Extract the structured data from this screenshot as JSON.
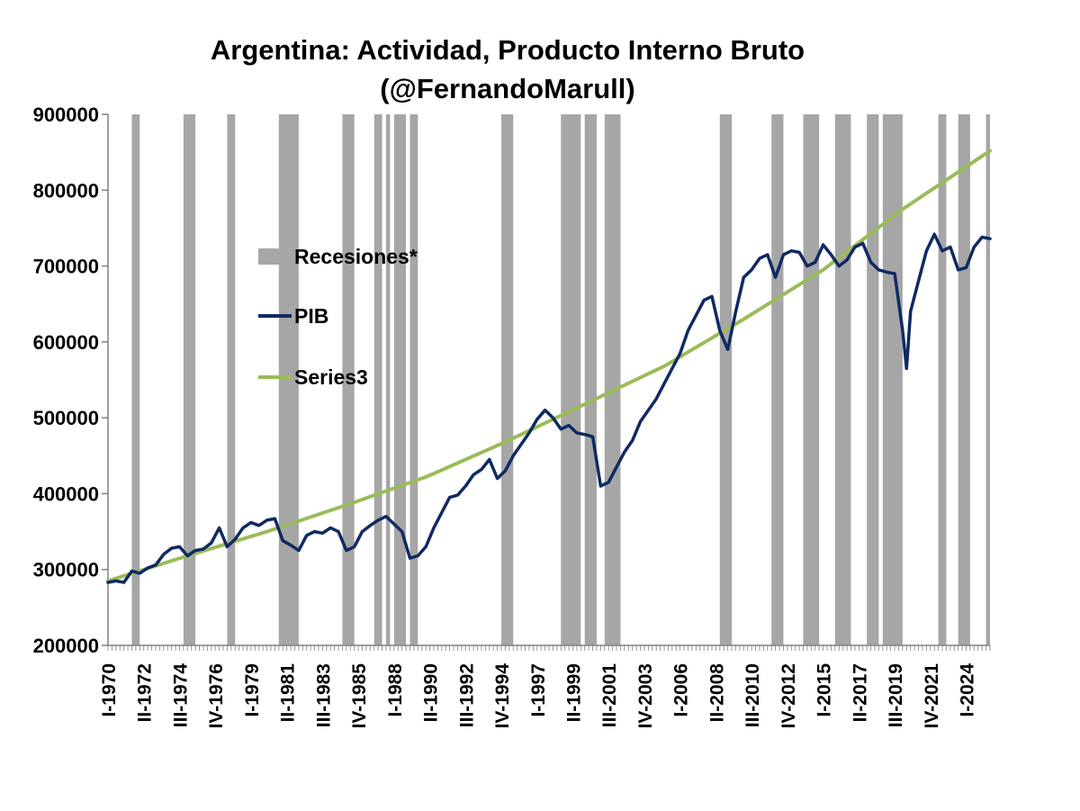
{
  "chart_data": {
    "type": "line",
    "title": "Argentina: Actividad, Producto Interno Bruto",
    "subtitle": "(@FernandoMarull)",
    "xlabel": "",
    "ylabel": "",
    "ylim": [
      200000,
      900000
    ],
    "yticks": [
      "200000",
      "300000",
      "400000",
      "500000",
      "600000",
      "700000",
      "800000",
      "900000"
    ],
    "xlim": [
      1970.0,
      2025.5
    ],
    "xticks": [
      {
        "label": "I-1970",
        "x": 1970.0
      },
      {
        "label": "II-1972",
        "x": 1972.25
      },
      {
        "label": "III-1974",
        "x": 1974.5
      },
      {
        "label": "IV-1976",
        "x": 1976.75
      },
      {
        "label": "I-1979",
        "x": 1979.0
      },
      {
        "label": "II-1981",
        "x": 1981.25
      },
      {
        "label": "III-1983",
        "x": 1983.5
      },
      {
        "label": "IV-1985",
        "x": 1985.75
      },
      {
        "label": "I-1988",
        "x": 1988.0
      },
      {
        "label": "II-1990",
        "x": 1990.25
      },
      {
        "label": "III-1992",
        "x": 1992.5
      },
      {
        "label": "IV-1994",
        "x": 1994.75
      },
      {
        "label": "I-1997",
        "x": 1997.0
      },
      {
        "label": "II-1999",
        "x": 1999.25
      },
      {
        "label": "III-2001",
        "x": 2001.5
      },
      {
        "label": "IV-2003",
        "x": 2003.75
      },
      {
        "label": "I-2006",
        "x": 2006.0
      },
      {
        "label": "II-2008",
        "x": 2008.25
      },
      {
        "label": "III-2010",
        "x": 2010.5
      },
      {
        "label": "IV-2012",
        "x": 2012.75
      },
      {
        "label": "I-2015",
        "x": 2015.0
      },
      {
        "label": "II-2017",
        "x": 2017.25
      },
      {
        "label": "III-2019",
        "x": 2019.5
      },
      {
        "label": "IV-2021",
        "x": 2021.75
      },
      {
        "label": "I-2024",
        "x": 2024.0
      }
    ],
    "legend": {
      "placement": "upper-left inside plot",
      "entries": [
        {
          "label": "Recesiones*",
          "kind": "bar",
          "color": "#a6a6a6"
        },
        {
          "label": "PIB",
          "kind": "line",
          "color": "#0f2a63"
        },
        {
          "label": "Series3",
          "kind": "line",
          "color": "#9bbb59"
        }
      ]
    },
    "recessions": [
      [
        1971.5,
        1972.0
      ],
      [
        1974.75,
        1975.5
      ],
      [
        1977.5,
        1978.0
      ],
      [
        1980.75,
        1982.0
      ],
      [
        1984.75,
        1985.5
      ],
      [
        1986.75,
        1987.25
      ],
      [
        1987.5,
        1987.75
      ],
      [
        1988.0,
        1988.75
      ],
      [
        1989.0,
        1989.5
      ],
      [
        1994.75,
        1995.5
      ],
      [
        1998.5,
        1999.75
      ],
      [
        2000.0,
        2000.75
      ],
      [
        2001.25,
        2002.25
      ],
      [
        2008.5,
        2009.25
      ],
      [
        2011.75,
        2012.5
      ],
      [
        2013.75,
        2014.75
      ],
      [
        2015.75,
        2016.75
      ],
      [
        2017.75,
        2018.5
      ],
      [
        2018.75,
        2020.0
      ],
      [
        2022.25,
        2022.75
      ],
      [
        2023.5,
        2024.25
      ],
      [
        2025.25,
        2025.5
      ]
    ],
    "series": [
      {
        "name": "PIB",
        "color": "#0f2a63",
        "x": [
          1970.0,
          1970.5,
          1971.0,
          1971.5,
          1972.0,
          1972.5,
          1973.0,
          1973.5,
          1974.0,
          1974.5,
          1975.0,
          1975.5,
          1976.0,
          1976.5,
          1977.0,
          1977.5,
          1978.0,
          1978.5,
          1979.0,
          1979.5,
          1980.0,
          1980.5,
          1981.0,
          1981.5,
          1982.0,
          1982.5,
          1983.0,
          1983.5,
          1984.0,
          1984.5,
          1985.0,
          1985.5,
          1986.0,
          1986.5,
          1987.0,
          1987.5,
          1988.0,
          1988.5,
          1989.0,
          1989.5,
          1990.0,
          1990.5,
          1991.0,
          1991.5,
          1992.0,
          1992.5,
          1993.0,
          1993.5,
          1994.0,
          1994.5,
          1995.0,
          1995.5,
          1996.0,
          1996.5,
          1997.0,
          1997.5,
          1998.0,
          1998.5,
          1999.0,
          1999.5,
          2000.0,
          2000.5,
          2001.0,
          2001.5,
          2002.0,
          2002.5,
          2003.0,
          2003.5,
          2004.0,
          2004.5,
          2005.0,
          2005.5,
          2006.0,
          2006.5,
          2007.0,
          2007.5,
          2008.0,
          2008.5,
          2009.0,
          2009.5,
          2010.0,
          2010.5,
          2011.0,
          2011.5,
          2012.0,
          2012.5,
          2013.0,
          2013.5,
          2014.0,
          2014.5,
          2015.0,
          2015.5,
          2016.0,
          2016.5,
          2017.0,
          2017.5,
          2018.0,
          2018.5,
          2019.0,
          2019.5,
          2020.0,
          2020.25,
          2020.5,
          2021.0,
          2021.5,
          2022.0,
          2022.5,
          2023.0,
          2023.5,
          2024.0,
          2024.5,
          2025.0,
          2025.5
        ],
        "values": [
          283000,
          285000,
          283000,
          298000,
          295000,
          302000,
          306000,
          320000,
          328000,
          330000,
          318000,
          325000,
          327000,
          335000,
          355000,
          330000,
          340000,
          355000,
          362000,
          358000,
          365000,
          367000,
          338000,
          332000,
          325000,
          345000,
          350000,
          348000,
          355000,
          350000,
          325000,
          330000,
          350000,
          358000,
          365000,
          370000,
          360000,
          350000,
          315000,
          318000,
          330000,
          355000,
          375000,
          395000,
          398000,
          410000,
          425000,
          432000,
          445000,
          420000,
          430000,
          450000,
          465000,
          480000,
          498000,
          510000,
          500000,
          485000,
          490000,
          480000,
          478000,
          475000,
          410000,
          415000,
          435000,
          455000,
          470000,
          495000,
          510000,
          525000,
          545000,
          565000,
          585000,
          615000,
          635000,
          655000,
          660000,
          615000,
          590000,
          640000,
          685000,
          695000,
          710000,
          715000,
          685000,
          715000,
          720000,
          718000,
          700000,
          705000,
          728000,
          715000,
          700000,
          708000,
          725000,
          730000,
          705000,
          695000,
          692000,
          690000,
          615000,
          565000,
          640000,
          680000,
          720000,
          742000,
          720000,
          725000,
          695000,
          698000,
          725000,
          738000,
          736000
        ]
      },
      {
        "name": "Series3",
        "color": "#9bbb59",
        "x": [
          1970.0,
          1975.0,
          1980.0,
          1985.0,
          1990.0,
          1995.0,
          2000.0,
          2005.0,
          2010.0,
          2015.0,
          2020.0,
          2025.0,
          2025.5
        ],
        "values": [
          285000,
          318000,
          350000,
          385000,
          422000,
          468000,
          518000,
          568000,
          630000,
          695000,
          775000,
          845000,
          852000
        ]
      }
    ]
  }
}
